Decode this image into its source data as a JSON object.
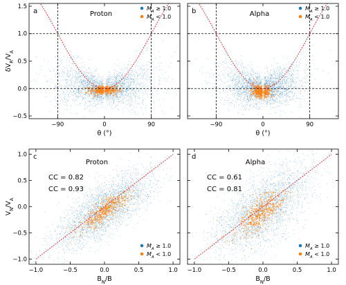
{
  "colors": {
    "high_ma": "#1f77b4",
    "low_ma": "#ff7f0e",
    "model_curve": "#d62728",
    "reference_lines": "#000000"
  },
  "legend": {
    "high": "M_A ≥ 1.0",
    "low": "M_A < 1.0",
    "placement_top": "top-right",
    "placement_bottom": "bottom-right"
  },
  "chart_data": [
    {
      "panel": "a",
      "type": "scatter",
      "title": "Proton",
      "xlabel": "θ (°)",
      "ylabel": "δV_R/V_A",
      "xlim": [
        -145,
        145
      ],
      "ylim": [
        -0.55,
        1.55
      ],
      "xticks": [
        -90,
        0,
        90
      ],
      "xtick_labels": [
        "−90",
        "0",
        "90"
      ],
      "yticks": [
        -0.5,
        0.0,
        0.5,
        1.0,
        1.5
      ],
      "ytick_labels": [
        "−0.5",
        "0.0",
        "0.5",
        "1.0",
        "1.5"
      ],
      "reference_lines": {
        "x": [
          -90,
          90
        ],
        "y": [
          0.0,
          1.0
        ],
        "style": "dashed"
      },
      "model_curve": "1 − cos θ",
      "series": [
        {
          "name": "M_A ≥ 1.0",
          "center": [
            0,
            -0.04
          ],
          "spread": [
            45,
            0.12
          ]
        },
        {
          "name": "M_A < 1.0",
          "center": [
            -2,
            -0.03
          ],
          "spread": [
            14,
            0.04
          ]
        }
      ]
    },
    {
      "panel": "b",
      "type": "scatter",
      "title": "Alpha",
      "xlabel": "θ (°)",
      "xlim": [
        -145,
        145
      ],
      "ylim": [
        -0.55,
        1.55
      ],
      "xticks": [
        -90,
        0,
        90
      ],
      "xtick_labels": [
        "−90",
        "0",
        "90"
      ],
      "reference_lines": {
        "x": [
          -90,
          90
        ],
        "y": [
          0.0,
          1.0
        ],
        "style": "dashed"
      },
      "model_curve": "1 − cos θ",
      "series": [
        {
          "name": "M_A ≥ 1.0",
          "center": [
            0,
            -0.02
          ],
          "spread": [
            38,
            0.13
          ]
        },
        {
          "name": "M_A < 1.0",
          "center": [
            -4,
            -0.05
          ],
          "spread": [
            10,
            0.06
          ]
        }
      ]
    },
    {
      "panel": "c",
      "type": "scatter",
      "title": "Proton",
      "xlabel": "B_N/B",
      "ylabel": "V_N/V_A",
      "xlim": [
        -1.1,
        1.1
      ],
      "ylim": [
        -1.1,
        1.1
      ],
      "xticks": [
        -1.0,
        -0.5,
        0.0,
        0.5,
        1.0
      ],
      "xtick_labels": [
        "−1.0",
        "−0.5",
        "0.0",
        "0.5",
        "1.0"
      ],
      "yticks": [
        -1.0,
        -0.5,
        0.0,
        0.5,
        1.0
      ],
      "ytick_labels": [
        "−1.0",
        "−0.5",
        "0.0",
        "0.5",
        "1.0"
      ],
      "reference_line": "y = x",
      "annotations": [
        {
          "text": "CC = 0.82",
          "series": "M_A ≥ 1.0"
        },
        {
          "text": "CC = 0.93",
          "series": "M_A < 1.0"
        }
      ],
      "series": [
        {
          "name": "M_A ≥ 1.0",
          "cc": 0.82,
          "center": [
            0.0,
            -0.05
          ]
        },
        {
          "name": "M_A < 1.0",
          "cc": 0.93,
          "center": [
            0.0,
            -0.08
          ]
        }
      ]
    },
    {
      "panel": "d",
      "type": "scatter",
      "title": "Alpha",
      "xlabel": "B_N/B",
      "xlim": [
        -1.1,
        1.1
      ],
      "ylim": [
        -1.1,
        1.1
      ],
      "xticks": [
        -1.0,
        -0.5,
        0.0,
        0.5,
        1.0
      ],
      "xtick_labels": [
        "−1.0",
        "−0.5",
        "0.0",
        "0.5",
        "1.0"
      ],
      "reference_line": "y = x",
      "annotations": [
        {
          "text": "CC = 0.61",
          "series": "M_A ≥ 1.0"
        },
        {
          "text": "CC = 0.81",
          "series": "M_A < 1.0"
        }
      ],
      "series": [
        {
          "name": "M_A ≥ 1.0",
          "cc": 0.61,
          "center": [
            0.0,
            -0.05
          ]
        },
        {
          "name": "M_A < 1.0",
          "cc": 0.81,
          "center": [
            -0.05,
            -0.1
          ]
        }
      ]
    }
  ]
}
